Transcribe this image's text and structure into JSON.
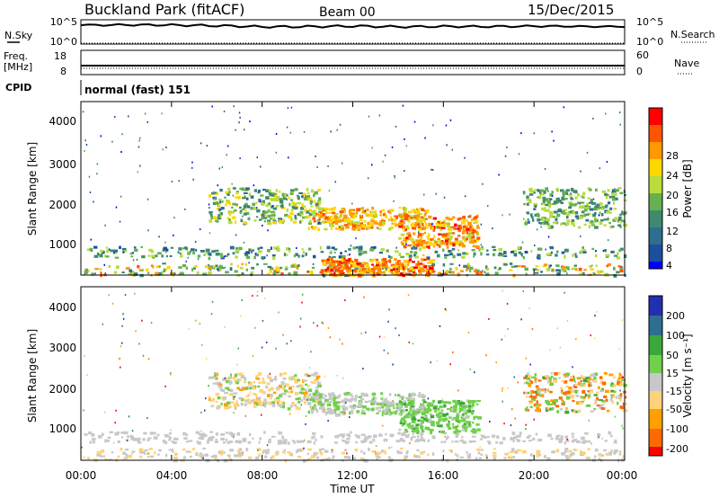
{
  "header": {
    "station": "Buckland Park (fitACF)",
    "beam": "Beam 00",
    "date": "15/Dec/2015"
  },
  "top_panels": {
    "nsky_label": "N.Sky",
    "nsky_ticks": [
      "10^5",
      "10^0"
    ],
    "nsearch_label": "N.Search",
    "nsearch_ticks": [
      "10^5",
      "10^0"
    ],
    "freq_label_1": "Freq.",
    "freq_label_2": "[MHz]",
    "freq_ticks": [
      "18",
      "8"
    ],
    "nave_label": "Nave",
    "nave_ticks": [
      "60",
      "0"
    ],
    "cpid_label": "CPID",
    "cpid_value": "normal (fast) 151"
  },
  "x_axis": {
    "label": "Time UT",
    "ticks": [
      "00:00",
      "04:00",
      "08:00",
      "12:00",
      "16:00",
      "20:00",
      "00:00"
    ]
  },
  "power_panel": {
    "ylabel": "Slant Range [km]",
    "yticks": [
      "4000",
      "3000",
      "2000",
      "1000"
    ],
    "colorbar_label": "Power [dB]",
    "colorbar_ticks": [
      "28",
      "24",
      "20",
      "16",
      "12",
      "8",
      "4"
    ]
  },
  "velocity_panel": {
    "ylabel": "Slant Range [km]",
    "yticks": [
      "4000",
      "3000",
      "2000",
      "1000"
    ],
    "colorbar_label": "Velocity [m s⁻¹]",
    "colorbar_ticks": [
      "200",
      "100",
      "50",
      "15",
      "-15",
      "-50",
      "-100",
      "-200"
    ]
  },
  "chart_data": [
    {
      "type": "line",
      "name": "N.Sky / N.Search",
      "x": [
        0,
        2,
        4,
        6,
        8,
        10,
        12,
        14,
        16,
        18,
        20,
        22,
        24
      ],
      "y": [
        20000,
        25000,
        22000,
        15000,
        8000,
        9000,
        12000,
        8000,
        10000,
        9000,
        12000,
        10000,
        9000
      ],
      "yscale": "log",
      "ylim": [
        1,
        100000
      ],
      "xlim": [
        0,
        24
      ]
    },
    {
      "type": "line",
      "name": "Freq. / Nave",
      "x": [
        0,
        24
      ],
      "freq_mhz": [
        10,
        10
      ],
      "nave": [
        14,
        14
      ],
      "ylim_freq": [
        8,
        18
      ],
      "ylim_nave": [
        0,
        60
      ]
    },
    {
      "type": "heatmap",
      "quantity": "Power",
      "xlim": [
        0,
        24
      ],
      "ylim": [
        180,
        4500
      ],
      "zlim": [
        0,
        30
      ],
      "colorscale": [
        "#0000ff",
        "#1b4f9c",
        "#2e6e8e",
        "#3f8a6e",
        "#66b050",
        "#b8dc3c",
        "#ffd700",
        "#ff9900",
        "#ff5500",
        "#ff0000"
      ],
      "regions": [
        {
          "t": [
            0.1,
            24
          ],
          "r": [
            180,
            480
          ],
          "z": [
            8,
            26
          ]
        },
        {
          "t": [
            0.1,
            24
          ],
          "r": [
            620,
            900
          ],
          "z": [
            4,
            18
          ]
        },
        {
          "t": [
            5.6,
            10.5
          ],
          "r": [
            1500,
            2400
          ],
          "z": [
            8,
            20
          ]
        },
        {
          "t": [
            10.0,
            15.2
          ],
          "r": [
            1350,
            1900
          ],
          "z": [
            16,
            26
          ]
        },
        {
          "t": [
            14.0,
            17.5
          ],
          "r": [
            900,
            1700
          ],
          "z": [
            16,
            28
          ]
        },
        {
          "t": [
            10.5,
            15.5
          ],
          "r": [
            180,
            600
          ],
          "z": [
            18,
            28
          ]
        },
        {
          "t": [
            19.5,
            24
          ],
          "r": [
            1400,
            2400
          ],
          "z": [
            8,
            18
          ]
        }
      ]
    },
    {
      "type": "heatmap",
      "quantity": "Velocity",
      "xlim": [
        0,
        24
      ],
      "ylim": [
        180,
        4500
      ],
      "zlim": [
        -250,
        250
      ],
      "colorscale": [
        "#ff0000",
        "#ff6a00",
        "#ffa000",
        "#ffd27a",
        "#c8c8c8",
        "#6fd04a",
        "#3aa83a",
        "#2e6e8e",
        "#2030b0"
      ],
      "regions": [
        {
          "t": [
            0.1,
            24
          ],
          "r": [
            180,
            480
          ],
          "z": [
            -50,
            15
          ]
        },
        {
          "t": [
            0.1,
            24
          ],
          "r": [
            620,
            900
          ],
          "z": [
            -15,
            15
          ]
        },
        {
          "t": [
            5.6,
            10.5
          ],
          "r": [
            1500,
            2400
          ],
          "z": [
            -100,
            50
          ]
        },
        {
          "t": [
            10.0,
            15.2
          ],
          "r": [
            1350,
            1900
          ],
          "z": [
            -15,
            50
          ]
        },
        {
          "t": [
            14.0,
            17.5
          ],
          "r": [
            900,
            1700
          ],
          "z": [
            15,
            100
          ]
        },
        {
          "t": [
            19.5,
            24
          ],
          "r": [
            1400,
            2400
          ],
          "z": [
            -200,
            100
          ]
        }
      ]
    }
  ]
}
